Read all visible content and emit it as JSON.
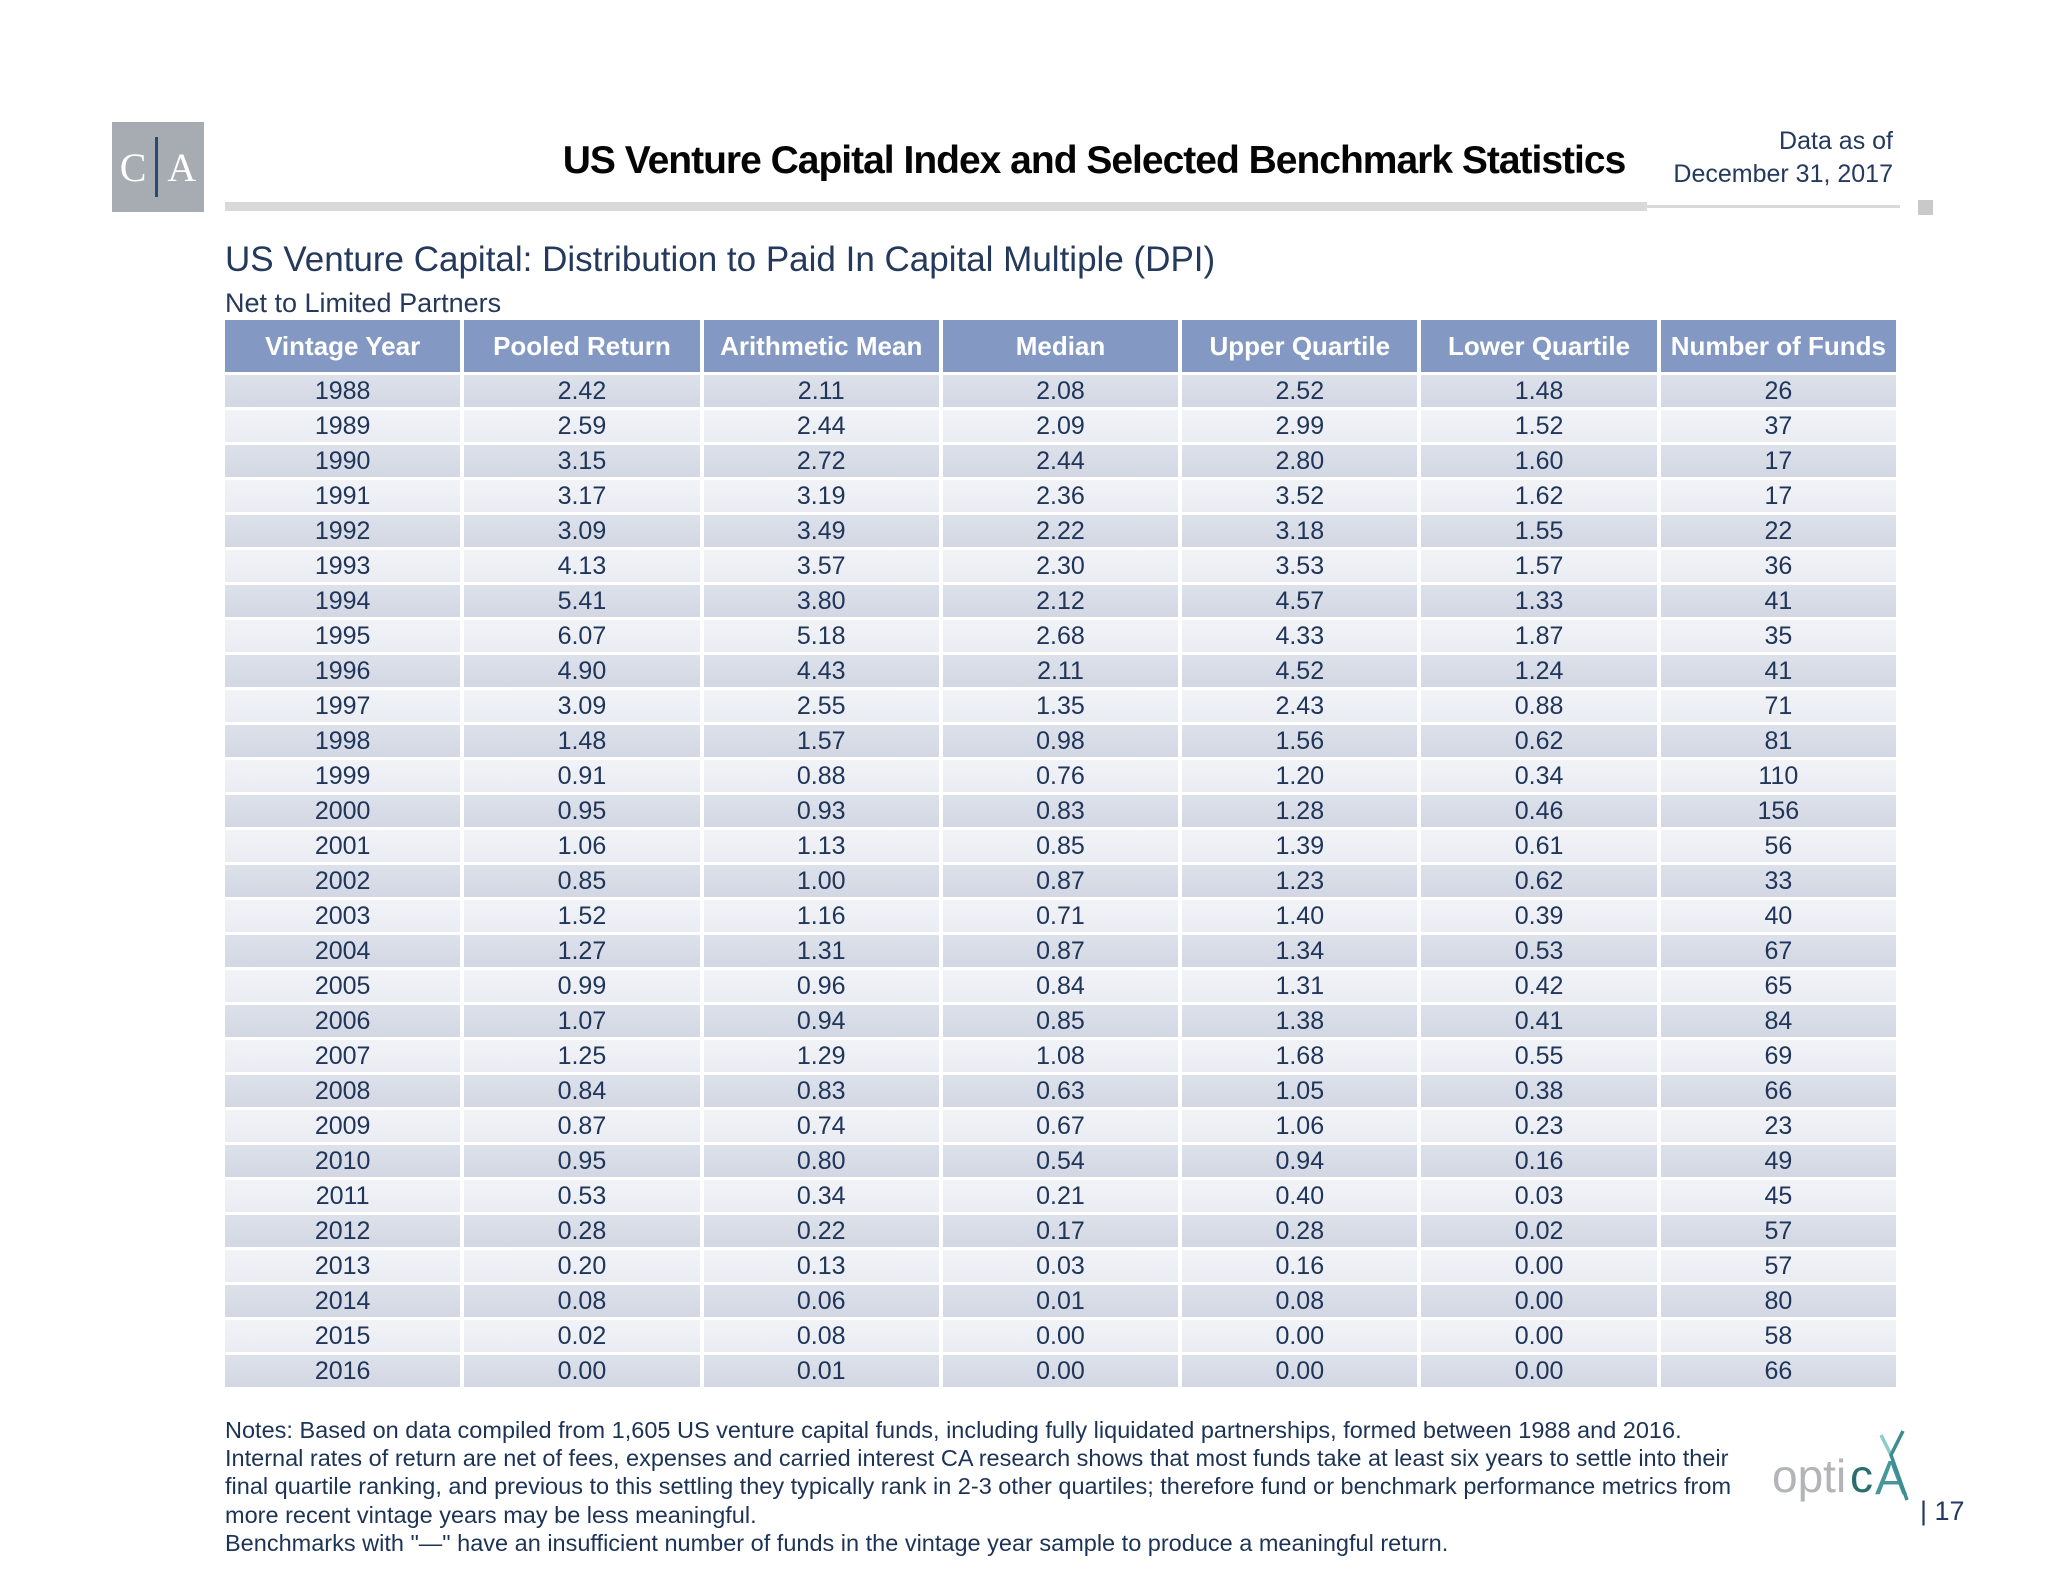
{
  "header": {
    "logo_left": "C",
    "logo_right": "A",
    "title": "US Venture Capital Index and Selected Benchmark Statistics",
    "data_as_of_line1": "Data as of",
    "data_as_of_line2": "December 31, 2017"
  },
  "section": {
    "title": "US Venture Capital: Distribution to Paid In Capital Multiple (DPI)",
    "subtitle": "Net to Limited Partners"
  },
  "table": {
    "columns": [
      "Vintage Year",
      "Pooled Return",
      "Arithmetic Mean",
      "Median",
      "Upper Quartile",
      "Lower Quartile",
      "Number of Funds"
    ],
    "rows": [
      [
        "1988",
        "2.42",
        "2.11",
        "2.08",
        "2.52",
        "1.48",
        "26"
      ],
      [
        "1989",
        "2.59",
        "2.44",
        "2.09",
        "2.99",
        "1.52",
        "37"
      ],
      [
        "1990",
        "3.15",
        "2.72",
        "2.44",
        "2.80",
        "1.60",
        "17"
      ],
      [
        "1991",
        "3.17",
        "3.19",
        "2.36",
        "3.52",
        "1.62",
        "17"
      ],
      [
        "1992",
        "3.09",
        "3.49",
        "2.22",
        "3.18",
        "1.55",
        "22"
      ],
      [
        "1993",
        "4.13",
        "3.57",
        "2.30",
        "3.53",
        "1.57",
        "36"
      ],
      [
        "1994",
        "5.41",
        "3.80",
        "2.12",
        "4.57",
        "1.33",
        "41"
      ],
      [
        "1995",
        "6.07",
        "5.18",
        "2.68",
        "4.33",
        "1.87",
        "35"
      ],
      [
        "1996",
        "4.90",
        "4.43",
        "2.11",
        "4.52",
        "1.24",
        "41"
      ],
      [
        "1997",
        "3.09",
        "2.55",
        "1.35",
        "2.43",
        "0.88",
        "71"
      ],
      [
        "1998",
        "1.48",
        "1.57",
        "0.98",
        "1.56",
        "0.62",
        "81"
      ],
      [
        "1999",
        "0.91",
        "0.88",
        "0.76",
        "1.20",
        "0.34",
        "110"
      ],
      [
        "2000",
        "0.95",
        "0.93",
        "0.83",
        "1.28",
        "0.46",
        "156"
      ],
      [
        "2001",
        "1.06",
        "1.13",
        "0.85",
        "1.39",
        "0.61",
        "56"
      ],
      [
        "2002",
        "0.85",
        "1.00",
        "0.87",
        "1.23",
        "0.62",
        "33"
      ],
      [
        "2003",
        "1.52",
        "1.16",
        "0.71",
        "1.40",
        "0.39",
        "40"
      ],
      [
        "2004",
        "1.27",
        "1.31",
        "0.87",
        "1.34",
        "0.53",
        "67"
      ],
      [
        "2005",
        "0.99",
        "0.96",
        "0.84",
        "1.31",
        "0.42",
        "65"
      ],
      [
        "2006",
        "1.07",
        "0.94",
        "0.85",
        "1.38",
        "0.41",
        "84"
      ],
      [
        "2007",
        "1.25",
        "1.29",
        "1.08",
        "1.68",
        "0.55",
        "69"
      ],
      [
        "2008",
        "0.84",
        "0.83",
        "0.63",
        "1.05",
        "0.38",
        "66"
      ],
      [
        "2009",
        "0.87",
        "0.74",
        "0.67",
        "1.06",
        "0.23",
        "23"
      ],
      [
        "2010",
        "0.95",
        "0.80",
        "0.54",
        "0.94",
        "0.16",
        "49"
      ],
      [
        "2011",
        "0.53",
        "0.34",
        "0.21",
        "0.40",
        "0.03",
        "45"
      ],
      [
        "2012",
        "0.28",
        "0.22",
        "0.17",
        "0.28",
        "0.02",
        "57"
      ],
      [
        "2013",
        "0.20",
        "0.13",
        "0.03",
        "0.16",
        "0.00",
        "57"
      ],
      [
        "2014",
        "0.08",
        "0.06",
        "0.01",
        "0.08",
        "0.00",
        "80"
      ],
      [
        "2015",
        "0.02",
        "0.08",
        "0.00",
        "0.00",
        "0.00",
        "58"
      ],
      [
        "2016",
        "0.00",
        "0.01",
        "0.00",
        "0.00",
        "0.00",
        "66"
      ]
    ]
  },
  "notes": {
    "p1": "Notes: Based on data compiled from 1,605 US venture capital funds, including fully liquidated partnerships, formed between 1988 and 2016. Internal rates of return are net of fees, expenses and carried interest CA research shows that most funds take at least six years to settle into their final quartile ranking, and previous to this settling they typically rank in 2-3 other quartiles; therefore fund or benchmark performance metrics from more recent vintage years may be less meaningful.",
    "p2": "Benchmarks with \"—\" have an insufficient number of funds in the vintage year sample to produce a meaningful return."
  },
  "footer": {
    "brand_gray": "opti",
    "brand_teal_c": "c",
    "brand_teal_a": "A",
    "page": "| 17"
  },
  "colors": {
    "header_blue": "#8399c3",
    "row_dark": "#d6dbe6",
    "row_light": "#edf0f5",
    "navy_text": "#23395d",
    "logo_gray": "#a7abb2",
    "brand_teal": "#46979c",
    "brand_teal_dark": "#2a6f6d",
    "divider_gray": "#d9d9d9"
  }
}
